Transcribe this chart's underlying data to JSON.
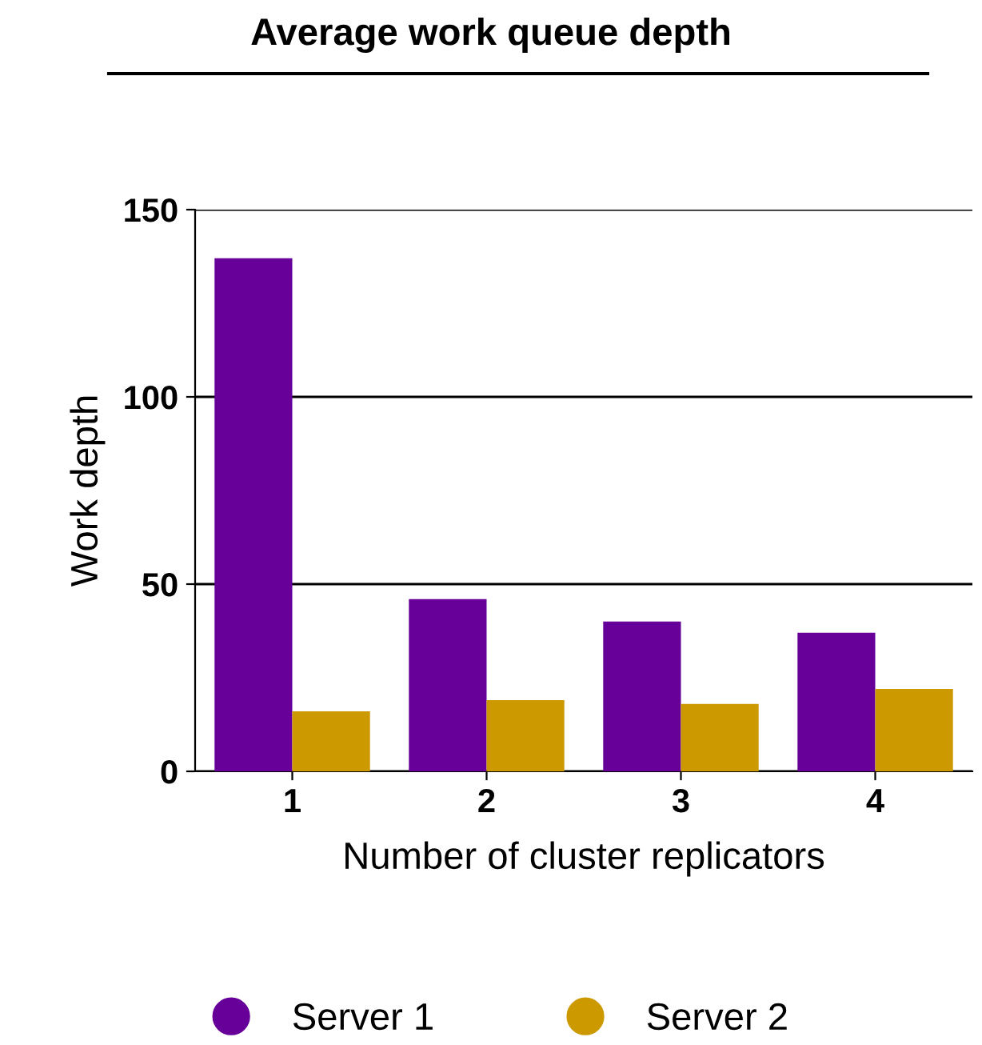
{
  "chart_data": {
    "type": "bar",
    "title": "Average work queue depth",
    "xlabel": "Number of cluster replicators",
    "ylabel": "Work depth",
    "categories": [
      "1",
      "2",
      "3",
      "4"
    ],
    "series": [
      {
        "name": "Server 1",
        "color": "#660099",
        "values": [
          137,
          46,
          40,
          37
        ]
      },
      {
        "name": "Server 2",
        "color": "#cc9900",
        "values": [
          16,
          19,
          18,
          22
        ]
      }
    ],
    "ylim": [
      0,
      150
    ],
    "yticks": [
      0,
      50,
      100,
      150
    ],
    "grid": "y",
    "legend": "bottom"
  }
}
